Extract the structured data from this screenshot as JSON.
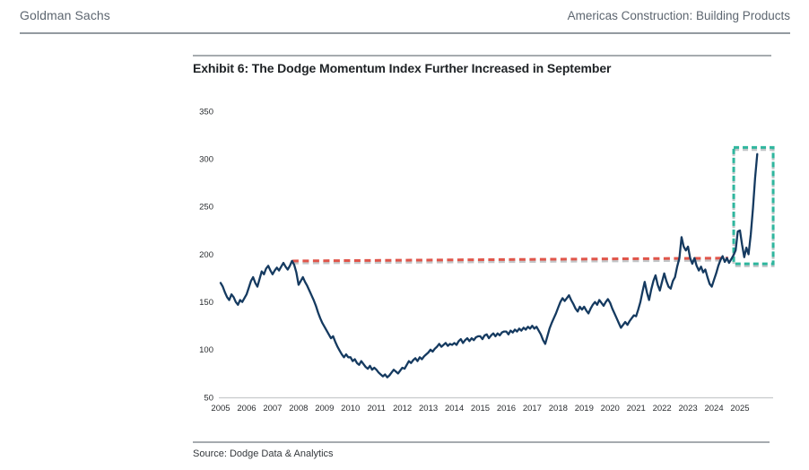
{
  "header": {
    "left": "Goldman Sachs",
    "right": "Americas Construction: Building Products"
  },
  "source_note": "Source: Dodge Data & Analytics",
  "chart_data": {
    "type": "line",
    "title": "Exhibit 6: The Dodge Momentum Index Further Increased in September",
    "xlabel": "",
    "ylabel": "",
    "ylim": [
      50,
      350
    ],
    "xlim": [
      2004.9,
      2026.3
    ],
    "grid": false,
    "legend": "none",
    "y_ticks": [
      350,
      300,
      250,
      200,
      150,
      100,
      50
    ],
    "x_ticks": [
      2005,
      2006,
      2007,
      2008,
      2009,
      2010,
      2011,
      2012,
      2013,
      2014,
      2015,
      2016,
      2017,
      2018,
      2019,
      2020,
      2021,
      2022,
      2023,
      2024,
      2025
    ],
    "series": [
      {
        "name": "Dodge Momentum Index",
        "color": "#153a60",
        "start": "2005-01",
        "end": "2025-09",
        "frequency": "monthly",
        "values": [
          170,
          166,
          160,
          155,
          152,
          158,
          155,
          150,
          147,
          152,
          150,
          154,
          158,
          165,
          172,
          176,
          170,
          166,
          174,
          182,
          179,
          185,
          188,
          183,
          179,
          183,
          186,
          183,
          187,
          191,
          187,
          184,
          188,
          193,
          189,
          181,
          168,
          172,
          176,
          171,
          167,
          162,
          157,
          152,
          146,
          139,
          133,
          128,
          124,
          120,
          116,
          112,
          114,
          108,
          103,
          99,
          95,
          92,
          95,
          92,
          92,
          88,
          90,
          86,
          84,
          88,
          85,
          82,
          80,
          83,
          79,
          81,
          79,
          76,
          74,
          72,
          74,
          71,
          73,
          76,
          79,
          77,
          75,
          78,
          81,
          80,
          84,
          88,
          86,
          89,
          91,
          88,
          92,
          90,
          93,
          95,
          97,
          100,
          98,
          101,
          103,
          106,
          103,
          105,
          107,
          104,
          106,
          105,
          107,
          105,
          109,
          111,
          107,
          110,
          112,
          109,
          112,
          110,
          113,
          114,
          114,
          111,
          115,
          116,
          112,
          115,
          117,
          114,
          117,
          115,
          118,
          119,
          119,
          116,
          120,
          118,
          121,
          119,
          122,
          120,
          123,
          121,
          124,
          122,
          125,
          122,
          124,
          120,
          116,
          110,
          106,
          114,
          122,
          128,
          133,
          138,
          144,
          150,
          154,
          151,
          154,
          157,
          152,
          148,
          143,
          140,
          145,
          142,
          145,
          141,
          138,
          143,
          147,
          150,
          147,
          152,
          149,
          146,
          150,
          153,
          149,
          143,
          138,
          133,
          128,
          123,
          126,
          129,
          126,
          130,
          133,
          136,
          135,
          142,
          150,
          161,
          171,
          160,
          152,
          163,
          172,
          178,
          168,
          162,
          171,
          180,
          172,
          166,
          164,
          172,
          176,
          187,
          196,
          218,
          208,
          204,
          208,
          196,
          190,
          196,
          188,
          183,
          187,
          181,
          184,
          176,
          169,
          166,
          173,
          180,
          188,
          194,
          198,
          192,
          196,
          191,
          195,
          199,
          204,
          224,
          225,
          210,
          197,
          207,
          200,
          221,
          248,
          280,
          305
        ]
      }
    ],
    "annotations": {
      "reference_dashed_line": {
        "style": "dashed",
        "color": "#e0554a",
        "from_t": 2007.76,
        "from_value": 193,
        "to_t": 2024.55,
        "to_value": 196
      },
      "highlight_box": {
        "style": "dashed",
        "color": "#2fb69e",
        "t_range": [
          2024.76,
          2026.28
        ],
        "value_range": [
          190,
          312
        ]
      }
    }
  }
}
